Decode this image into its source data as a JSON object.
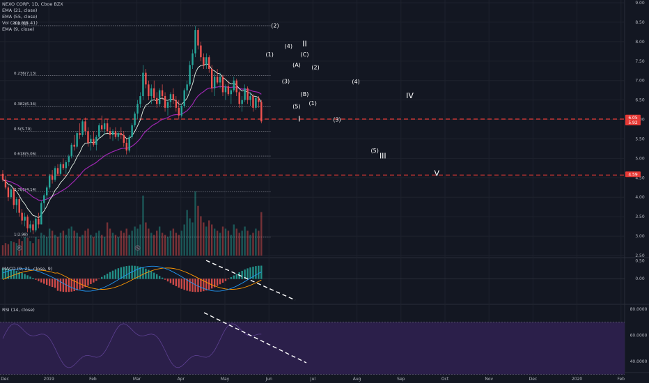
{
  "header": {
    "symbol_line": "NEXO CORP, 1D, Cboe BZX",
    "studies": [
      "EMA (21, close)",
      "EMA (55, close)",
      "Vol (20)",
      "EMA (9, close)"
    ],
    "vol_value": "0(8.41)",
    "macd_label": "MACD (9, 21, close, 9)",
    "rsi_label": "RSI (14, close)"
  },
  "colors": {
    "background": "#131722",
    "up": "#26a69a",
    "down": "#ef5350",
    "ema_light": "#e8f5e9",
    "ema_purple": "#9c27b0",
    "macd_line": "#2196f3",
    "signal_line": "#ff9800",
    "rsi_band": "#2b1f4a",
    "level_line": "#e53935"
  },
  "chart_data": [
    {
      "type": "candlestick",
      "panel": "price",
      "x_ticks": [
        "Dec",
        "2019",
        "Feb",
        "Mar",
        "Apr",
        "May",
        "Jun",
        "Jul",
        "Aug",
        "Sep",
        "Oct",
        "Nov",
        "Dec",
        "2020",
        "Feb"
      ],
      "y_ticks": [
        "9.00",
        "8.50",
        "8.00",
        "7.50",
        "7.00",
        "6.50",
        "6.00",
        "5.50",
        "5.00",
        "4.50",
        "4.00",
        "3.50",
        "3.00",
        "2.50"
      ],
      "ylim": [
        2.5,
        9.0
      ],
      "price_labels": [
        {
          "text": "6.05",
          "value": 6.05
        },
        {
          "text": "5.92",
          "value": 5.92
        },
        {
          "text": "4.59",
          "value": 4.59
        }
      ],
      "red_levels": [
        6.01,
        4.57
      ],
      "fib_levels": [
        {
          "label": "0(8.41)",
          "value": 8.41
        },
        {
          "label": "0.236(7.13)",
          "value": 7.13
        },
        {
          "label": "0.382(6.34)",
          "value": 6.34
        },
        {
          "label": "0.5(5.70)",
          "value": 5.7
        },
        {
          "label": "0.618(5.06)",
          "value": 5.06
        },
        {
          "label": "0.786(4.14)",
          "value": 4.14
        },
        {
          "label": "1(2.98)",
          "value": 2.98
        }
      ],
      "wave_labels": [
        {
          "text": "(2)",
          "x": 101,
          "y": 8.36
        },
        {
          "text": "(4)",
          "x": 106,
          "y": 7.84
        },
        {
          "text": "II",
          "x": 112,
          "y": 7.88
        },
        {
          "text": "(1)",
          "x": 99,
          "y": 7.62
        },
        {
          "text": "(C)",
          "x": 112,
          "y": 7.62
        },
        {
          "text": "(A)",
          "x": 109,
          "y": 7.35
        },
        {
          "text": "(2)",
          "x": 116,
          "y": 7.29
        },
        {
          "text": "(3)",
          "x": 105,
          "y": 6.93
        },
        {
          "text": "(B)",
          "x": 112,
          "y": 6.6
        },
        {
          "text": "(4)",
          "x": 131,
          "y": 6.92
        },
        {
          "text": "IV",
          "x": 151,
          "y": 6.55
        },
        {
          "text": "(5)",
          "x": 109,
          "y": 6.29
        },
        {
          "text": "(1)",
          "x": 115,
          "y": 6.37
        },
        {
          "text": "I",
          "x": 110,
          "y": 5.95
        },
        {
          "text": "(3)",
          "x": 124,
          "y": 5.95
        },
        {
          "text": "(5)",
          "x": 138,
          "y": 5.15
        },
        {
          "text": "III",
          "x": 141,
          "y": 5.0
        },
        {
          "text": "V",
          "x": 161,
          "y": 4.55
        }
      ],
      "candles": [
        [
          4.6,
          4.7,
          4.4,
          4.45
        ],
        [
          4.45,
          4.55,
          4.2,
          4.25
        ],
        [
          4.25,
          4.3,
          3.9,
          4.0
        ],
        [
          4.0,
          4.3,
          3.95,
          4.2
        ],
        [
          4.2,
          4.25,
          3.7,
          3.8
        ],
        [
          3.8,
          4.0,
          3.6,
          3.95
        ],
        [
          3.95,
          4.0,
          3.5,
          3.6
        ],
        [
          3.6,
          3.7,
          3.3,
          3.4
        ],
        [
          3.4,
          3.6,
          3.25,
          3.5
        ],
        [
          3.5,
          3.55,
          3.1,
          3.2
        ],
        [
          3.2,
          3.4,
          3.1,
          3.3
        ],
        [
          3.3,
          3.4,
          3.05,
          3.15
        ],
        [
          3.15,
          3.5,
          3.1,
          3.45
        ],
        [
          3.45,
          3.6,
          3.2,
          3.3
        ],
        [
          3.3,
          3.9,
          3.3,
          3.85
        ],
        [
          3.85,
          4.1,
          3.7,
          4.05
        ],
        [
          4.05,
          4.3,
          3.95,
          4.25
        ],
        [
          4.25,
          4.6,
          4.2,
          4.55
        ],
        [
          4.55,
          4.7,
          4.35,
          4.45
        ],
        [
          4.45,
          4.8,
          4.4,
          4.75
        ],
        [
          4.75,
          4.85,
          4.55,
          4.6
        ],
        [
          4.6,
          4.9,
          4.55,
          4.85
        ],
        [
          4.85,
          5.0,
          4.7,
          4.75
        ],
        [
          4.75,
          4.95,
          4.6,
          4.9
        ],
        [
          4.9,
          5.1,
          4.8,
          5.05
        ],
        [
          5.05,
          5.4,
          5.0,
          5.35
        ],
        [
          5.35,
          5.6,
          5.2,
          5.3
        ],
        [
          5.3,
          5.7,
          5.25,
          5.65
        ],
        [
          5.65,
          5.9,
          5.5,
          5.6
        ],
        [
          5.6,
          6.0,
          5.55,
          5.95
        ],
        [
          5.95,
          6.05,
          5.6,
          5.7
        ],
        [
          5.7,
          5.8,
          5.3,
          5.4
        ],
        [
          5.4,
          5.6,
          5.2,
          5.5
        ],
        [
          5.5,
          5.7,
          5.3,
          5.35
        ],
        [
          5.35,
          5.6,
          5.2,
          5.55
        ],
        [
          5.55,
          5.9,
          5.5,
          5.85
        ],
        [
          5.85,
          6.1,
          5.7,
          5.75
        ],
        [
          5.75,
          6.0,
          5.6,
          5.9
        ],
        [
          5.9,
          6.0,
          5.65,
          5.7
        ],
        [
          5.7,
          5.8,
          5.5,
          5.6
        ],
        [
          5.6,
          5.75,
          5.45,
          5.7
        ],
        [
          5.7,
          5.8,
          5.5,
          5.55
        ],
        [
          5.55,
          5.7,
          5.45,
          5.65
        ],
        [
          5.65,
          5.8,
          5.5,
          5.6
        ],
        [
          5.6,
          5.7,
          5.3,
          5.4
        ],
        [
          5.4,
          5.5,
          5.1,
          5.2
        ],
        [
          5.2,
          5.6,
          5.15,
          5.55
        ],
        [
          5.55,
          5.9,
          5.5,
          5.85
        ],
        [
          5.85,
          6.2,
          5.8,
          6.15
        ],
        [
          6.15,
          6.5,
          6.0,
          6.4
        ],
        [
          6.4,
          6.7,
          6.3,
          6.6
        ],
        [
          6.6,
          7.4,
          6.5,
          7.2
        ],
        [
          7.2,
          7.3,
          6.8,
          6.9
        ],
        [
          6.9,
          7.0,
          6.5,
          6.6
        ],
        [
          6.6,
          6.9,
          6.4,
          6.8
        ],
        [
          6.8,
          7.0,
          6.5,
          6.55
        ],
        [
          6.55,
          6.7,
          6.3,
          6.4
        ],
        [
          6.4,
          6.8,
          6.35,
          6.75
        ],
        [
          6.75,
          6.9,
          6.5,
          6.6
        ],
        [
          6.6,
          6.7,
          6.2,
          6.3
        ],
        [
          6.3,
          6.5,
          6.1,
          6.45
        ],
        [
          6.45,
          6.7,
          6.3,
          6.65
        ],
        [
          6.65,
          6.8,
          6.4,
          6.5
        ],
        [
          6.5,
          6.6,
          6.2,
          6.3
        ],
        [
          6.3,
          6.5,
          6.0,
          6.1
        ],
        [
          6.1,
          6.4,
          6.05,
          6.35
        ],
        [
          6.35,
          6.8,
          6.3,
          6.75
        ],
        [
          6.75,
          7.0,
          6.6,
          6.9
        ],
        [
          6.9,
          7.5,
          6.85,
          7.4
        ],
        [
          7.4,
          7.8,
          7.3,
          7.7
        ],
        [
          7.7,
          8.4,
          7.6,
          8.3
        ],
        [
          8.3,
          8.35,
          7.8,
          7.9
        ],
        [
          7.9,
          8.0,
          7.5,
          7.6
        ],
        [
          7.6,
          7.7,
          7.3,
          7.4
        ],
        [
          7.4,
          7.7,
          7.3,
          7.6
        ],
        [
          7.6,
          7.65,
          7.2,
          7.3
        ],
        [
          7.3,
          7.4,
          6.7,
          6.8
        ],
        [
          6.8,
          7.2,
          6.6,
          7.1
        ],
        [
          7.1,
          7.3,
          6.9,
          6.95
        ],
        [
          6.95,
          7.2,
          6.8,
          7.1
        ],
        [
          7.1,
          7.15,
          6.6,
          6.7
        ],
        [
          6.7,
          6.9,
          6.5,
          6.85
        ],
        [
          6.85,
          7.0,
          6.6,
          6.65
        ],
        [
          6.65,
          6.8,
          6.4,
          6.75
        ],
        [
          6.75,
          7.1,
          6.7,
          7.0
        ],
        [
          7.0,
          7.05,
          6.6,
          6.7
        ],
        [
          6.7,
          6.75,
          6.3,
          6.4
        ],
        [
          6.4,
          6.6,
          6.2,
          6.5
        ],
        [
          6.5,
          6.9,
          6.45,
          6.8
        ],
        [
          6.8,
          6.85,
          6.4,
          6.5
        ],
        [
          6.5,
          6.7,
          6.35,
          6.6
        ],
        [
          6.6,
          6.65,
          6.2,
          6.3
        ],
        [
          6.3,
          6.6,
          6.25,
          6.55
        ],
        [
          6.55,
          6.6,
          6.3,
          6.45
        ],
        [
          6.45,
          6.5,
          5.9,
          5.95
        ]
      ],
      "volume": [
        0.5,
        0.6,
        0.55,
        0.7,
        0.65,
        0.6,
        0.8,
        0.7,
        0.9,
        0.85,
        0.7,
        0.6,
        0.9,
        0.8,
        1.1,
        1.0,
        0.9,
        1.3,
        1.2,
        1.0,
        0.9,
        1.1,
        1.2,
        1.0,
        1.3,
        1.4,
        1.2,
        1.1,
        0.9,
        1.0,
        1.2,
        1.3,
        1.0,
        0.9,
        1.1,
        1.2,
        1.0,
        0.9,
        1.6,
        1.3,
        1.1,
        1.0,
        0.9,
        1.2,
        1.1,
        1.3,
        1.0,
        1.2,
        1.4,
        1.3,
        1.5,
        2.9,
        1.6,
        1.3,
        1.1,
        1.0,
        1.2,
        1.4,
        1.1,
        1.0,
        0.9,
        1.2,
        1.3,
        1.1,
        1.0,
        1.2,
        1.5,
        2.2,
        1.8,
        1.6,
        3.1,
        2.4,
        1.9,
        1.6,
        1.4,
        1.7,
        1.5,
        1.3,
        1.2,
        1.1,
        1.4,
        1.3,
        1.2,
        1.0,
        1.5,
        1.3,
        1.1,
        1.2,
        1.4,
        1.2,
        1.0,
        1.1,
        1.3,
        1.2,
        2.1
      ]
    },
    {
      "type": "line",
      "panel": "macd",
      "y_ticks": [
        "0.50",
        "0.00"
      ],
      "ylim": [
        -0.7,
        0.55
      ]
    },
    {
      "type": "line",
      "panel": "rsi",
      "y_ticks": [
        "80.0000",
        "60.0000",
        "40.0000"
      ],
      "ylim": [
        32,
        82
      ],
      "band": [
        30,
        70
      ]
    }
  ]
}
